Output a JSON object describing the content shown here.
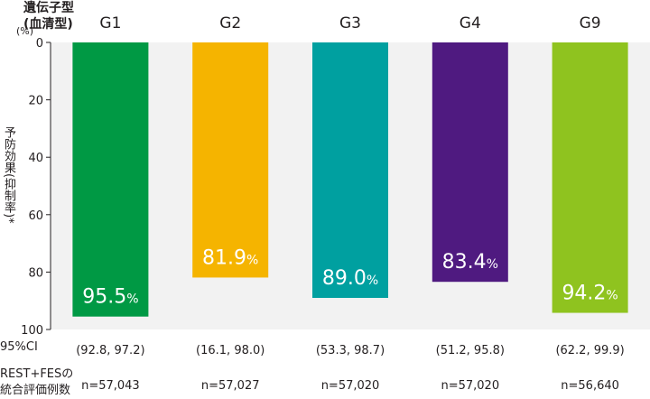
{
  "header": {
    "genotype_label": "遺伝子型\n(血清型)"
  },
  "ylabel": "予防効果(抑制率)*",
  "unit_label": "(%)",
  "rows": {
    "ci_label": "95%CI",
    "n_label": "REST+FESの\n統合評価例数"
  },
  "chart_data": {
    "type": "bar",
    "categories": [
      "G1",
      "G2",
      "G3",
      "G4",
      "G9"
    ],
    "values": [
      95.5,
      81.9,
      89.0,
      83.4,
      94.2
    ],
    "value_labels": [
      "95.5",
      "81.9",
      "89.0",
      "83.4",
      "94.2"
    ],
    "value_unit": "%",
    "ci": [
      "(92.8, 97.2)",
      "(16.1, 98.0)",
      "(53.3, 98.7)",
      "(51.2, 95.8)",
      "(62.2, 99.9)"
    ],
    "n": [
      "n=57,043",
      "n=57,027",
      "n=57,020",
      "n=57,020",
      "n=56,640"
    ],
    "colors": [
      "#009944",
      "#f5b400",
      "#00a0a0",
      "#4f1a80",
      "#8fc31f"
    ],
    "ylabel": "予防効果(抑制率)*",
    "yticks": [
      0,
      20,
      40,
      60,
      80,
      100
    ],
    "ylim": [
      0,
      100
    ],
    "y_inverted": true,
    "grid": false
  }
}
